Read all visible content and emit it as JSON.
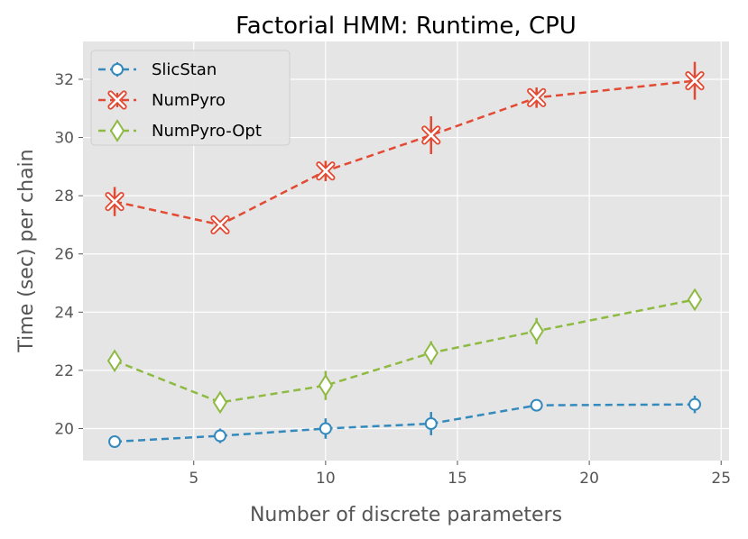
{
  "chart_data": {
    "type": "line",
    "title": "Factorial HMM: Runtime, CPU",
    "xlabel": "Number of discrete parameters",
    "ylabel": "Time (sec) per chain",
    "xlim": [
      0.8,
      25.3
    ],
    "ylim": [
      18.9,
      33.3
    ],
    "xticks": [
      5,
      10,
      15,
      20,
      25
    ],
    "yticks": [
      20,
      22,
      24,
      26,
      28,
      30,
      32
    ],
    "grid": true,
    "legend_position": "top-left",
    "x": [
      2,
      6,
      10,
      14,
      18,
      24
    ],
    "series": [
      {
        "name": "SlicStan",
        "color": "#348ABD",
        "marker": "circle",
        "values": [
          19.55,
          19.75,
          20.0,
          20.17,
          20.8,
          20.83
        ],
        "errors": [
          0.1,
          0.25,
          0.35,
          0.4,
          0.15,
          0.3
        ]
      },
      {
        "name": "NumPyro",
        "color": "#E24A33",
        "marker": "x-circle",
        "values": [
          27.8,
          27.0,
          28.85,
          30.08,
          31.37,
          31.95
        ],
        "errors": [
          0.5,
          0.15,
          0.35,
          0.65,
          0.35,
          0.65
        ]
      },
      {
        "name": "NumPyro-Opt",
        "color": "#8EBA42",
        "marker": "diamond",
        "values": [
          22.33,
          20.9,
          21.48,
          22.6,
          23.35,
          24.43
        ],
        "errors": [
          0.2,
          0.2,
          0.5,
          0.4,
          0.45,
          0.3
        ]
      }
    ]
  }
}
